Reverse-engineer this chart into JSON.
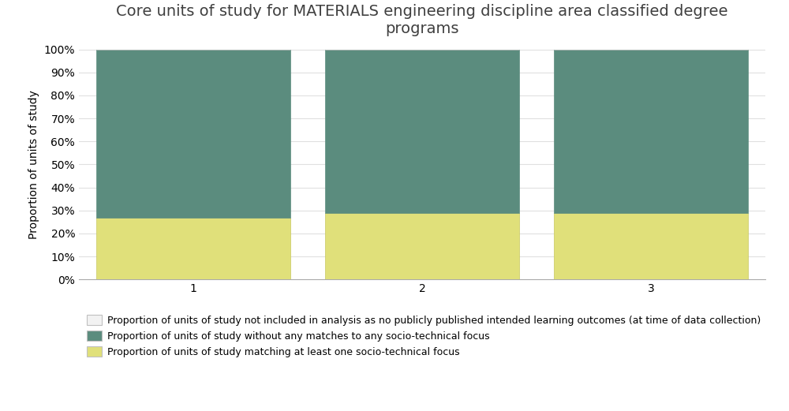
{
  "title": "Core units of study for MATERIALS engineering discipline area classified degree\nprograms",
  "categories": [
    "1",
    "2",
    "3"
  ],
  "series": [
    {
      "label": "Proportion of units of study not included in analysis as no publicly published intended learning outcomes (at time of data collection)",
      "values": [
        0.0,
        0.0,
        0.0
      ],
      "color": "#f2f2f2",
      "edgecolor": "#c0c0c0"
    },
    {
      "label": "Proportion of units of study without any matches to any socio-technical focus",
      "values": [
        0.73,
        0.71,
        0.71
      ],
      "color": "#5b8c7e",
      "edgecolor": "#5b8c7e"
    },
    {
      "label": "Proportion of units of study matching at least one socio-technical focus",
      "values": [
        0.27,
        0.29,
        0.29
      ],
      "color": "#e0e07a",
      "edgecolor": "#c8c860"
    }
  ],
  "ylabel": "Proportion of units of study",
  "ylim": [
    0,
    1
  ],
  "yticks": [
    0.0,
    0.1,
    0.2,
    0.3,
    0.4,
    0.5,
    0.6,
    0.7,
    0.8,
    0.9,
    1.0
  ],
  "yticklabels": [
    "0%",
    "10%",
    "20%",
    "30%",
    "40%",
    "50%",
    "60%",
    "70%",
    "80%",
    "90%",
    "100%"
  ],
  "background_color": "#ffffff",
  "grid_color": "#e0e0e0",
  "bar_width": 0.85,
  "title_fontsize": 14,
  "axis_fontsize": 10,
  "legend_fontsize": 9,
  "tick_fontsize": 10
}
